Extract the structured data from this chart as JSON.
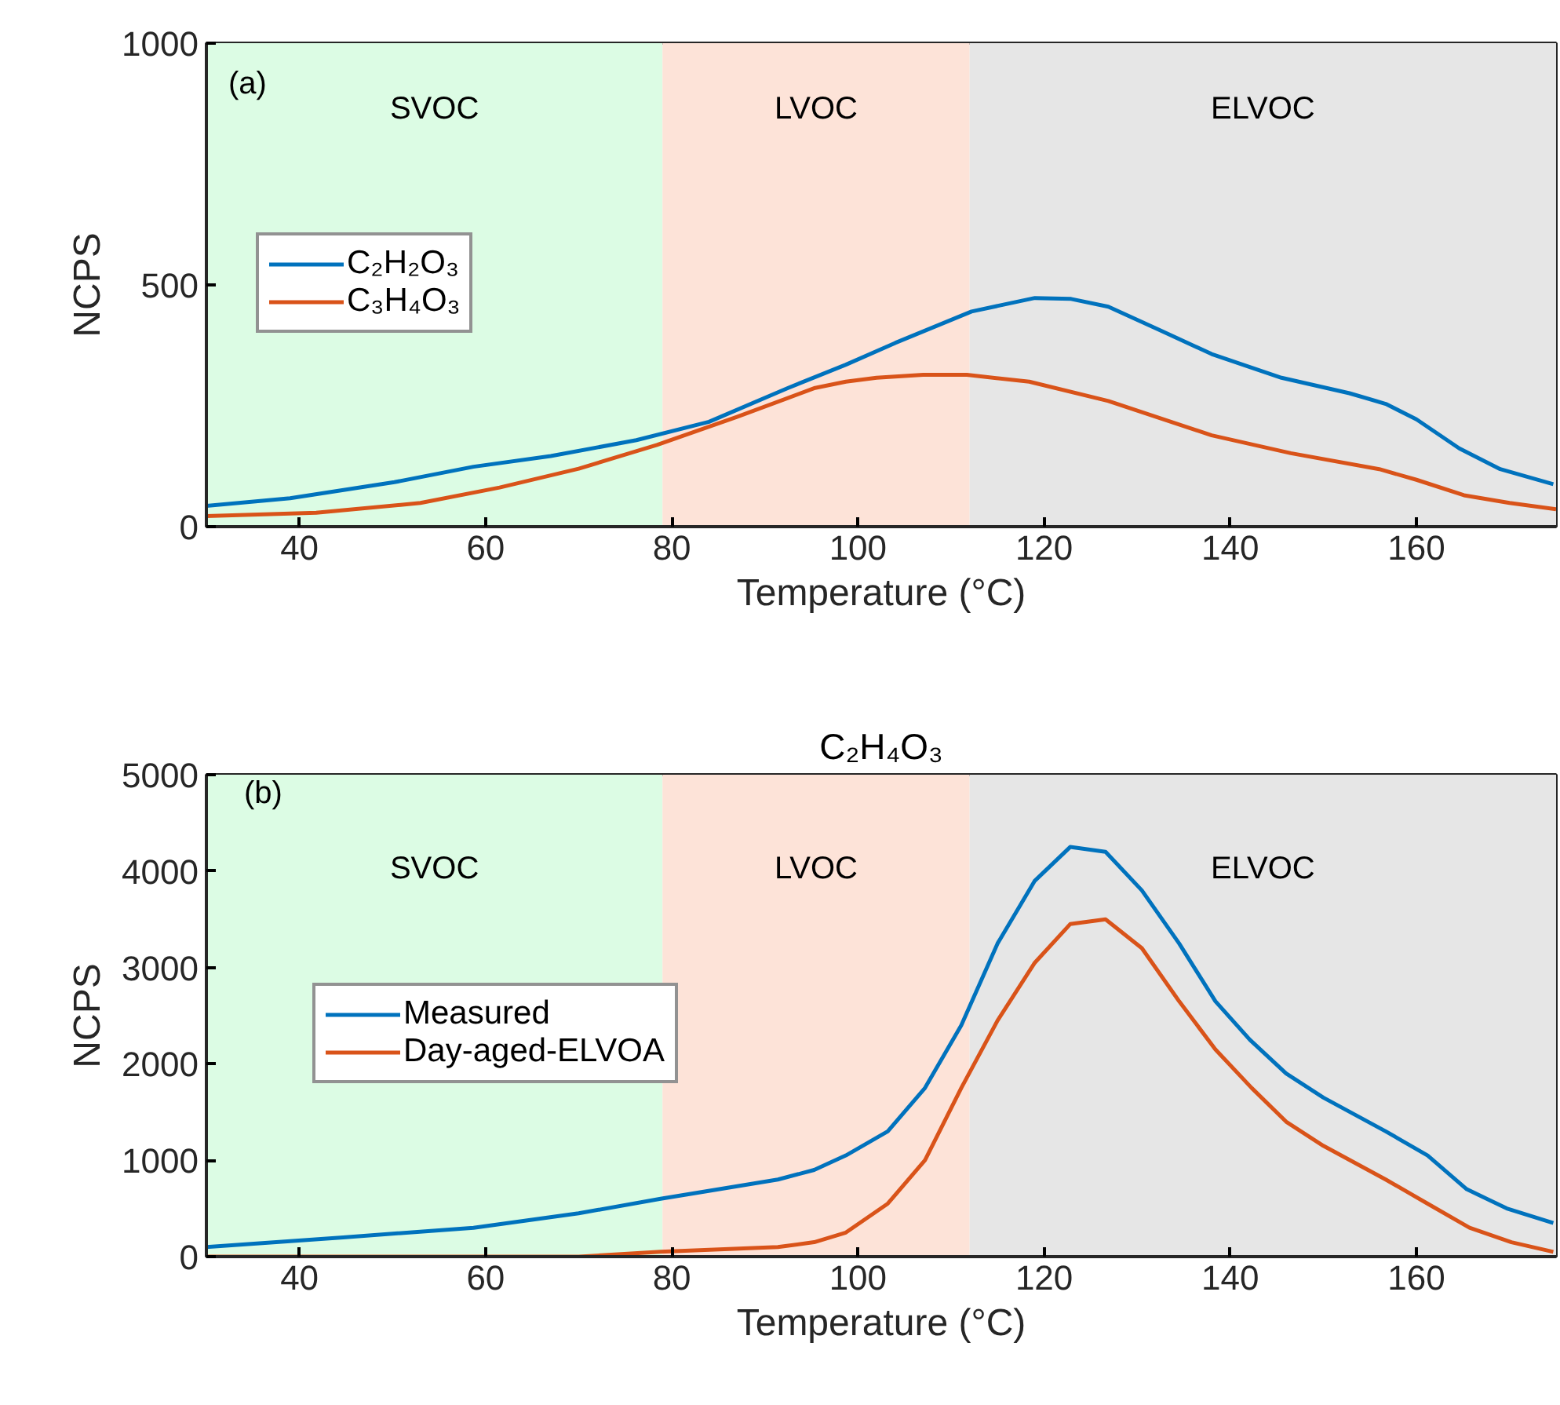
{
  "chart_data": [
    {
      "type": "line",
      "xlabel": "Temperature (°C)",
      "ylabel": "NCPS",
      "annotations": [
        "(a)"
      ],
      "xlim": [
        30,
        175
      ],
      "xticks": [
        40,
        60,
        80,
        100,
        120,
        140,
        160
      ],
      "ylim": [
        0,
        1000
      ],
      "yticks": [
        0,
        500,
        1000
      ],
      "grid": false,
      "legend": "top left",
      "bands": [
        {
          "axis": "x",
          "from": 30,
          "to": 79,
          "label": "SVOC",
          "color": "#dcfce4"
        },
        {
          "axis": "x",
          "from": 79,
          "to": 112,
          "label": "LVOC",
          "color": "#fde3d8"
        },
        {
          "axis": "x",
          "from": 112,
          "to": 175,
          "label": "ELVOC",
          "color": "#e6e6e6"
        }
      ],
      "series": [
        {
          "name": "C₂H₂O₃",
          "color": "#0072bd",
          "x": [
            30,
            39,
            50.2,
            58.7,
            67,
            76.2,
            84,
            92.5,
            98.7,
            104,
            112.2,
            119,
            122.9,
            126.9,
            132.5,
            138,
            145.5,
            152.8,
            156.7,
            160,
            164.6,
            169,
            174.7
          ],
          "values": [
            43,
            59,
            92,
            124,
            146,
            179,
            217,
            287,
            335,
            380,
            445,
            473,
            471,
            455,
            406,
            357,
            308,
            276,
            254,
            222,
            162,
            119,
            88
          ]
        },
        {
          "name": "C₃H₄O₃",
          "color": "#d95319",
          "x": [
            30,
            41.8,
            53,
            61.5,
            70,
            78.4,
            87,
            95.4,
            98.7,
            102,
            107,
            111.7,
            118.4,
            126.9,
            138,
            146.5,
            156,
            160,
            165.1,
            170,
            175
          ],
          "values": [
            22,
            29,
            49,
            81,
            120,
            169,
            227,
            287,
            300,
            308,
            314,
            314,
            300,
            260,
            189,
            152,
            119,
            97,
            65,
            49,
            36
          ]
        }
      ]
    },
    {
      "type": "line",
      "title": "C₂H₄O₃",
      "xlabel": "Temperature (°C)",
      "ylabel": "NCPS",
      "annotations": [
        "(b)"
      ],
      "xlim": [
        30,
        175
      ],
      "xticks": [
        40,
        60,
        80,
        100,
        120,
        140,
        160
      ],
      "ylim": [
        0,
        5000
      ],
      "yticks": [
        0,
        1000,
        2000,
        3000,
        4000,
        5000
      ],
      "grid": false,
      "legend": "left",
      "bands": [
        {
          "axis": "x",
          "from": 30,
          "to": 79,
          "label": "SVOC",
          "color": "#dcfce4"
        },
        {
          "axis": "x",
          "from": 79,
          "to": 112,
          "label": "LVOC",
          "color": "#fde3d8"
        },
        {
          "axis": "x",
          "from": 112,
          "to": 175,
          "label": "ELVOC",
          "color": "#e6e6e6"
        }
      ],
      "series": [
        {
          "name": "Measured",
          "color": "#0072bd",
          "x": [
            30,
            44.7,
            58.7,
            70,
            78.8,
            91.4,
            95.3,
            98.7,
            103.2,
            107.2,
            111.1,
            115,
            119,
            122.8,
            126.6,
            130.5,
            134.5,
            138.4,
            142.1,
            146,
            150,
            156.7,
            161.2,
            165.4,
            169.7,
            174.7
          ],
          "values": [
            100,
            200,
            300,
            450,
            600,
            800,
            900,
            1050,
            1300,
            1750,
            2400,
            3250,
            3900,
            4250,
            4200,
            3800,
            3250,
            2650,
            2250,
            1900,
            1650,
            1300,
            1050,
            700,
            500,
            350
          ]
        },
        {
          "name": "Day-aged-ELVOA",
          "color": "#d95319",
          "x": [
            30,
            50,
            70,
            78.8,
            91.4,
            95.3,
            98.7,
            103.2,
            107.2,
            111.1,
            115,
            119,
            122.8,
            126.6,
            130.5,
            134.5,
            138.4,
            142.3,
            146,
            150,
            156.7,
            161.2,
            165.7,
            170.2,
            174.7
          ],
          "values": [
            0,
            0,
            0,
            50,
            100,
            150,
            250,
            550,
            1000,
            1750,
            2450,
            3050,
            3450,
            3500,
            3200,
            2650,
            2150,
            1750,
            1400,
            1150,
            800,
            550,
            300,
            150,
            50
          ]
        }
      ]
    }
  ]
}
